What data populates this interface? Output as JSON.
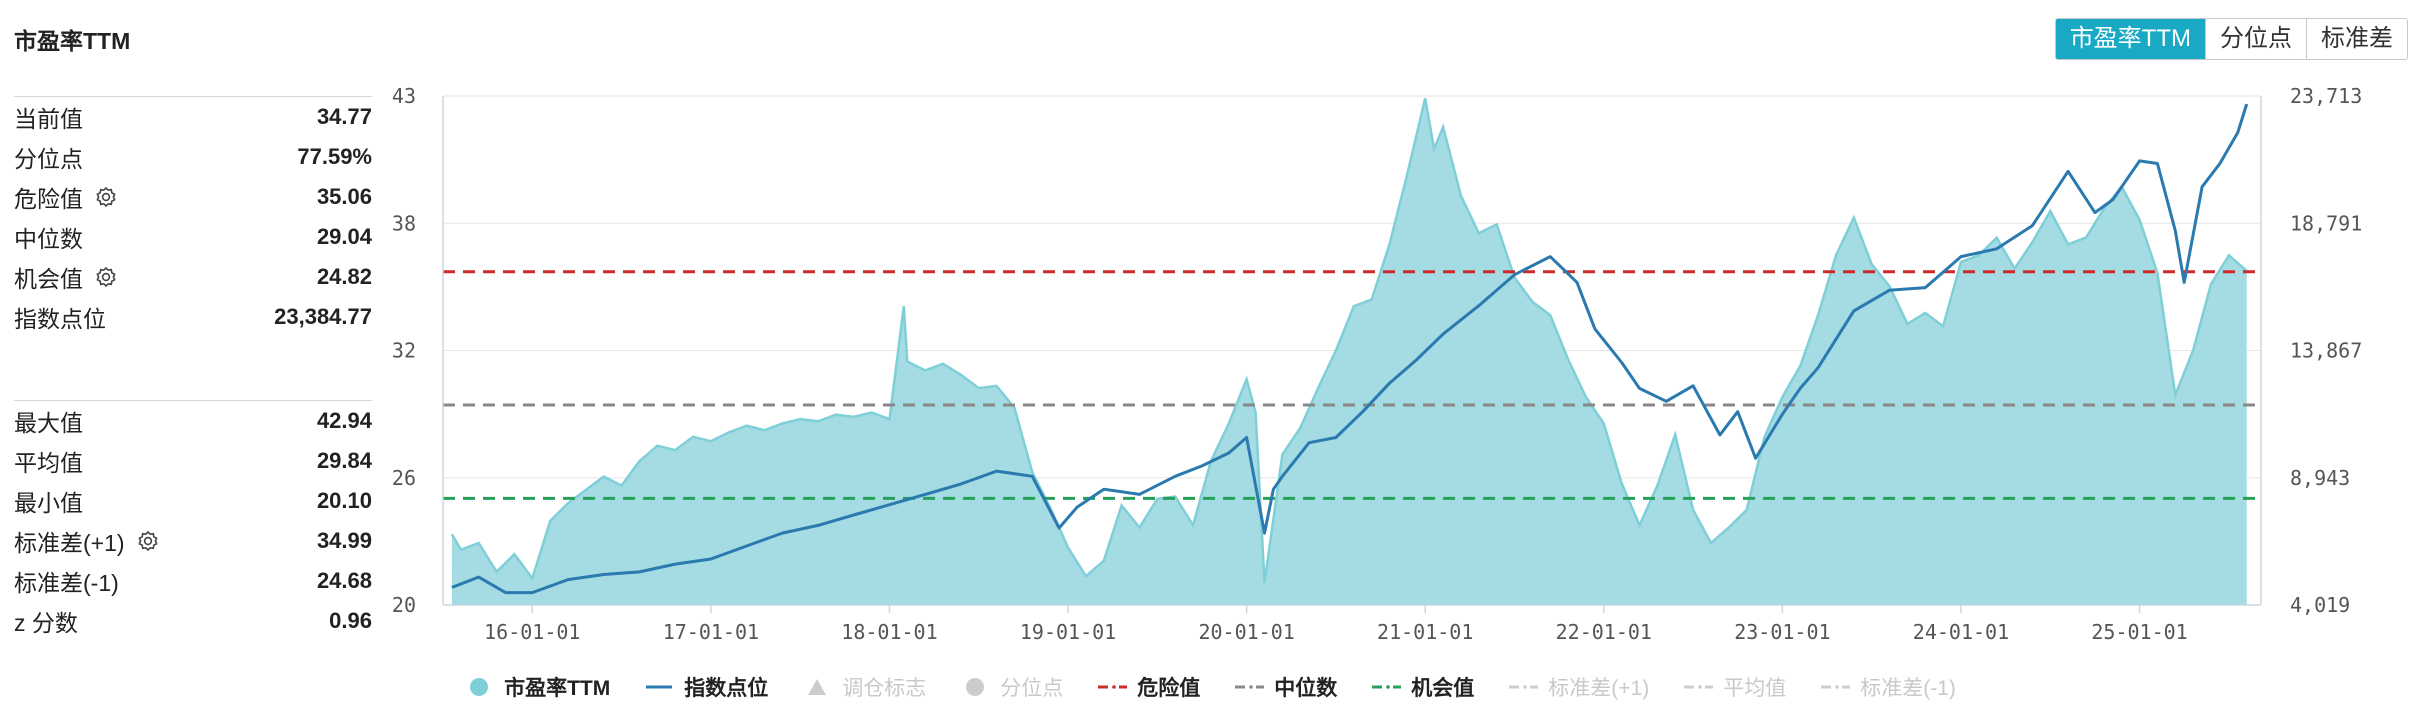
{
  "header": {
    "title": "市盈率TTM"
  },
  "tabs": [
    {
      "label": "市盈率TTM",
      "active": true
    },
    {
      "label": "分位点",
      "active": false
    },
    {
      "label": "标准差",
      "active": false
    }
  ],
  "stats_top": [
    {
      "label": "当前值",
      "value": "34.77",
      "gear": false
    },
    {
      "label": "分位点",
      "value": "77.59%",
      "gear": false
    },
    {
      "label": "危险值",
      "value": "35.06",
      "gear": true
    },
    {
      "label": "中位数",
      "value": "29.04",
      "gear": false
    },
    {
      "label": "机会值",
      "value": "24.82",
      "gear": true
    },
    {
      "label": "指数点位",
      "value": "23,384.77",
      "gear": false
    }
  ],
  "stats_bottom": [
    {
      "label": "最大值",
      "value": "42.94",
      "gear": false
    },
    {
      "label": "平均值",
      "value": "29.84",
      "gear": false
    },
    {
      "label": "最小值",
      "value": "20.10",
      "gear": false
    },
    {
      "label": "标准差(+1)",
      "value": "34.99",
      "gear": true
    },
    {
      "label": "标准差(-1)",
      "value": "24.68",
      "gear": false
    },
    {
      "label": "z 分数",
      "value": "0.96",
      "gear": false
    }
  ],
  "legend": [
    {
      "label": "市盈率TTM",
      "kind": "circle",
      "color": "#7fcfd9",
      "active": true
    },
    {
      "label": "指数点位",
      "kind": "line",
      "color": "#2a7ab0",
      "active": true
    },
    {
      "label": "调仓标志",
      "kind": "triangle",
      "color": "#cccccc",
      "active": false
    },
    {
      "label": "分位点",
      "kind": "circle",
      "color": "#cccccc",
      "active": false
    },
    {
      "label": "危险值",
      "kind": "dash",
      "color": "#cc2b2b",
      "active": true
    },
    {
      "label": "中位数",
      "kind": "dash",
      "color": "#888888",
      "active": true
    },
    {
      "label": "机会值",
      "kind": "dash",
      "color": "#27a05a",
      "active": true
    },
    {
      "label": "标准差(+1)",
      "kind": "dash",
      "color": "#cccccc",
      "active": false
    },
    {
      "label": "平均值",
      "kind": "dash",
      "color": "#cccccc",
      "active": false
    },
    {
      "label": "标准差(-1)",
      "kind": "dash",
      "color": "#cccccc",
      "active": false
    }
  ],
  "colors": {
    "accent": "#1aa9c5",
    "pe_fill": "#a5dbe2",
    "pe_line": "#7fcfd9",
    "index_line": "#2a7ab0",
    "danger": "#cc2b2b",
    "median": "#888888",
    "opportunity": "#27a05a"
  },
  "chart_data": {
    "type": "area",
    "x_tick_labels": [
      "16-01-01",
      "17-01-01",
      "18-01-01",
      "19-01-01",
      "20-01-01",
      "21-01-01",
      "22-01-01",
      "23-01-01",
      "24-01-01",
      "25-01-01"
    ],
    "y_left": {
      "ticks": [
        20,
        26,
        32,
        38,
        43
      ],
      "range": [
        20,
        43
      ]
    },
    "y_right": {
      "ticks": [
        "4,019",
        "8,943",
        "13,867",
        "18,791",
        "23,713"
      ],
      "range": [
        4019,
        23713
      ]
    },
    "reference_lines": {
      "danger": 35.06,
      "median": 29.04,
      "opportunity": 24.82
    },
    "series": [
      {
        "name": "市盈率TTM",
        "axis": "left",
        "x": [
          2015.55,
          2015.6,
          2015.7,
          2015.8,
          2015.9,
          2016.0,
          2016.1,
          2016.2,
          2016.3,
          2016.4,
          2016.5,
          2016.6,
          2016.7,
          2016.8,
          2016.9,
          2017.0,
          2017.1,
          2017.2,
          2017.3,
          2017.4,
          2017.5,
          2017.6,
          2017.7,
          2017.8,
          2017.9,
          2018.0,
          2018.08,
          2018.1,
          2018.2,
          2018.3,
          2018.4,
          2018.5,
          2018.6,
          2018.7,
          2018.8,
          2018.9,
          2019.0,
          2019.1,
          2019.2,
          2019.3,
          2019.4,
          2019.5,
          2019.6,
          2019.7,
          2019.8,
          2019.9,
          2020.0,
          2020.05,
          2020.1,
          2020.2,
          2020.3,
          2020.4,
          2020.5,
          2020.6,
          2020.7,
          2020.8,
          2020.9,
          2021.0,
          2021.05,
          2021.1,
          2021.2,
          2021.3,
          2021.4,
          2021.5,
          2021.6,
          2021.7,
          2021.8,
          2021.9,
          2022.0,
          2022.1,
          2022.2,
          2022.3,
          2022.4,
          2022.5,
          2022.6,
          2022.7,
          2022.8,
          2022.9,
          2023.0,
          2023.1,
          2023.2,
          2023.3,
          2023.4,
          2023.5,
          2023.6,
          2023.7,
          2023.8,
          2023.9,
          2024.0,
          2024.1,
          2024.2,
          2024.3,
          2024.4,
          2024.5,
          2024.6,
          2024.7,
          2024.8,
          2024.9,
          2025.0,
          2025.1,
          2025.2,
          2025.3,
          2025.4,
          2025.5,
          2025.6
        ],
        "values": [
          23.2,
          22.5,
          22.8,
          21.5,
          22.3,
          21.2,
          23.8,
          24.6,
          25.2,
          25.8,
          25.4,
          26.5,
          27.2,
          27.0,
          27.6,
          27.4,
          27.8,
          28.1,
          27.9,
          28.2,
          28.4,
          28.3,
          28.6,
          28.5,
          28.7,
          28.4,
          33.5,
          31.0,
          30.6,
          30.9,
          30.4,
          29.8,
          29.9,
          28.9,
          26.0,
          24.4,
          22.6,
          21.3,
          22.0,
          24.5,
          23.5,
          24.8,
          24.9,
          23.6,
          26.5,
          28.2,
          30.2,
          28.7,
          21.0,
          26.8,
          28.0,
          29.8,
          31.5,
          33.5,
          33.8,
          36.3,
          39.5,
          42.9,
          40.6,
          41.6,
          38.5,
          36.8,
          37.2,
          34.8,
          33.7,
          33.1,
          31.1,
          29.4,
          28.2,
          25.5,
          23.6,
          25.4,
          27.7,
          24.3,
          22.8,
          23.5,
          24.3,
          27.6,
          29.4,
          30.8,
          33.1,
          35.8,
          37.5,
          35.4,
          34.4,
          32.7,
          33.2,
          32.6,
          35.5,
          35.8,
          36.6,
          35.2,
          36.4,
          37.8,
          36.3,
          36.6,
          37.9,
          38.9,
          37.4,
          35.0,
          29.5,
          31.5,
          34.5,
          35.8,
          35.1
        ]
      },
      {
        "name": "指数点位",
        "axis": "right",
        "x": [
          2015.55,
          2015.7,
          2015.85,
          2016.0,
          2016.2,
          2016.4,
          2016.6,
          2016.8,
          2017.0,
          2017.2,
          2017.4,
          2017.6,
          2017.8,
          2018.0,
          2018.2,
          2018.4,
          2018.6,
          2018.8,
          2018.95,
          2019.05,
          2019.2,
          2019.4,
          2019.6,
          2019.75,
          2019.9,
          2020.0,
          2020.1,
          2020.15,
          2020.2,
          2020.35,
          2020.5,
          2020.65,
          2020.8,
          2020.95,
          2021.1,
          2021.3,
          2021.5,
          2021.7,
          2021.85,
          2021.95,
          2022.1,
          2022.2,
          2022.35,
          2022.5,
          2022.65,
          2022.75,
          2022.85,
          2023.0,
          2023.1,
          2023.2,
          2023.4,
          2023.6,
          2023.8,
          2024.0,
          2024.2,
          2024.4,
          2024.6,
          2024.75,
          2024.85,
          2025.0,
          2025.1,
          2025.2,
          2025.25,
          2025.35,
          2025.45,
          2025.55,
          2025.6
        ],
        "values": [
          4700,
          5100,
          4500,
          4500,
          5000,
          5200,
          5300,
          5600,
          5800,
          6300,
          6800,
          7100,
          7500,
          7900,
          8300,
          8700,
          9200,
          9000,
          7000,
          7800,
          8500,
          8300,
          9000,
          9400,
          9900,
          10500,
          6800,
          8500,
          9000,
          10300,
          10500,
          11500,
          12600,
          13500,
          14500,
          15600,
          16800,
          17500,
          16500,
          14700,
          13400,
          12400,
          11900,
          12500,
          10600,
          11500,
          9700,
          11400,
          12400,
          13200,
          15400,
          16200,
          16300,
          17500,
          17800,
          18700,
          20800,
          19200,
          19700,
          21200,
          21100,
          18500,
          16500,
          20200,
          21100,
          22300,
          23400
        ]
      }
    ]
  }
}
